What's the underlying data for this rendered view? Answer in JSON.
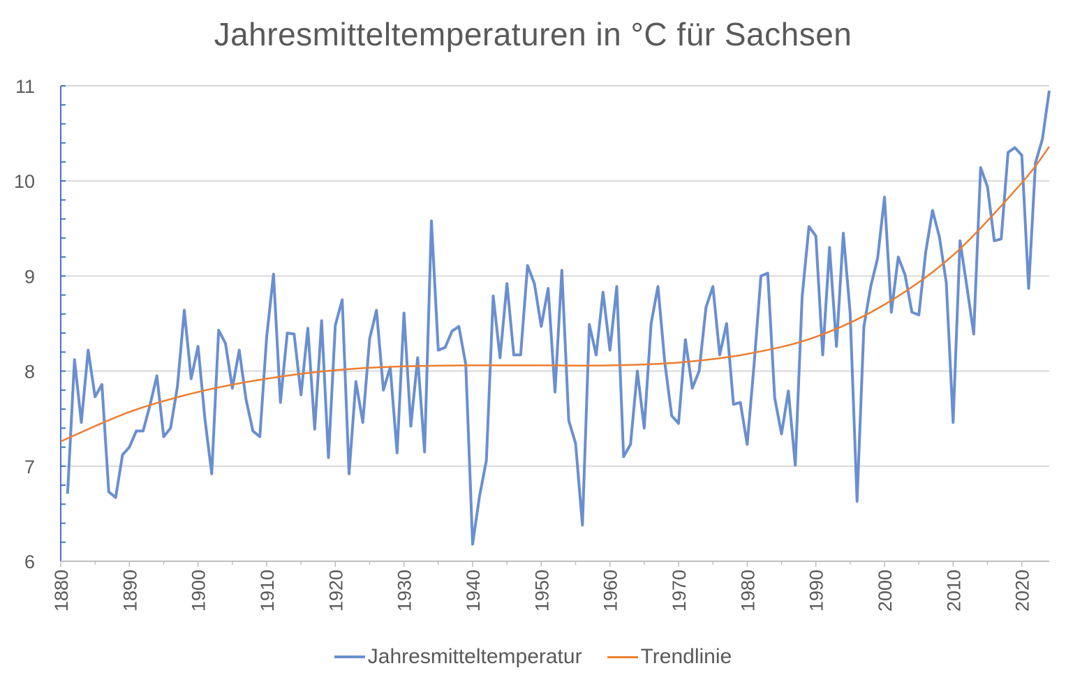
{
  "chart_data": {
    "type": "line",
    "title": "Jahresmitteltemperaturen in °C für Sachsen",
    "xlabel": "",
    "ylabel": "",
    "xlim": [
      1880,
      2024
    ],
    "ylim": [
      6,
      11
    ],
    "x_ticks": [
      "1880",
      "1890",
      "1900",
      "1910",
      "1920",
      "1930",
      "1940",
      "1950",
      "1960",
      "1970",
      "1980",
      "1990",
      "2000",
      "2010",
      "2020"
    ],
    "y_ticks": [
      "6",
      "7",
      "8",
      "9",
      "10",
      "11"
    ],
    "grid": "horizontal",
    "legend": "bottom",
    "series": [
      {
        "name": "Jahresmitteltemperatur",
        "color": "#6a8fd0",
        "x_start": 1881,
        "values": [
          6.71,
          8.12,
          7.46,
          8.22,
          7.73,
          7.86,
          6.73,
          6.67,
          7.12,
          7.2,
          7.37,
          7.37,
          7.64,
          7.95,
          7.31,
          7.4,
          7.84,
          8.64,
          7.92,
          8.26,
          7.5,
          6.92,
          8.43,
          8.29,
          7.82,
          8.22,
          7.7,
          7.37,
          7.31,
          8.36,
          9.02,
          7.67,
          8.4,
          8.39,
          7.75,
          8.45,
          7.39,
          8.53,
          7.09,
          8.48,
          8.75,
          6.92,
          7.89,
          7.46,
          8.34,
          8.64,
          7.8,
          8.04,
          7.14,
          8.61,
          7.42,
          8.14,
          7.15,
          9.58,
          8.22,
          8.25,
          8.42,
          8.47,
          8.07,
          6.18,
          6.68,
          7.06,
          8.79,
          8.14,
          8.92,
          8.17,
          8.17,
          9.11,
          8.92,
          8.47,
          8.87,
          7.78,
          9.06,
          7.48,
          7.24,
          6.38,
          8.49,
          8.17,
          8.83,
          8.22,
          8.89,
          7.1,
          7.23,
          8.0,
          7.4,
          8.5,
          8.89,
          8.09,
          7.53,
          7.45,
          8.33,
          7.82,
          8.0,
          8.67,
          8.89,
          8.17,
          8.5,
          7.65,
          7.67,
          7.23,
          8.07,
          9.0,
          9.03,
          7.72,
          7.34,
          7.79,
          7.01,
          8.78,
          9.52,
          9.42,
          8.17,
          9.3,
          8.26,
          9.45,
          8.61,
          6.63,
          8.47,
          8.89,
          9.19,
          9.83,
          8.62,
          9.2,
          9.01,
          8.62,
          8.59,
          9.25,
          9.69,
          9.41,
          8.93,
          7.46,
          9.37,
          8.89,
          8.39,
          10.14,
          9.94,
          9.37,
          9.39,
          10.3,
          10.35,
          10.27,
          8.87,
          10.19,
          10.44,
          10.95
        ]
      },
      {
        "name": "Trendlinie",
        "color": "#ed7d31",
        "x": [
          1880,
          1890,
          1900,
          1910,
          1920,
          1930,
          1940,
          1950,
          1960,
          1970,
          1980,
          1990,
          2000,
          2010,
          2020,
          2024
        ],
        "values": [
          7.26,
          7.57,
          7.78,
          7.92,
          8.01,
          8.05,
          8.06,
          8.06,
          8.06,
          8.09,
          8.18,
          8.36,
          8.7,
          9.22,
          9.98,
          10.36
        ]
      }
    ]
  }
}
